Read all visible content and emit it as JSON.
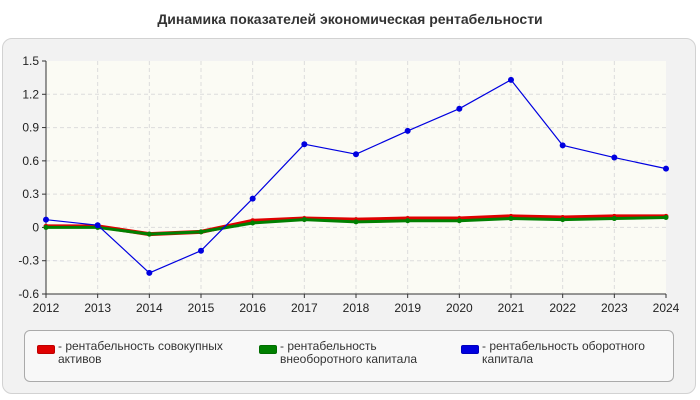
{
  "chart_data": {
    "type": "line",
    "title": "Динамика показателей экономическая рентабельности",
    "xlabel": "",
    "ylabel": "",
    "categories": [
      "2012",
      "2013",
      "2014",
      "2015",
      "2016",
      "2017",
      "2018",
      "2019",
      "2020",
      "2021",
      "2022",
      "2023",
      "2024"
    ],
    "ylim": [
      -0.6,
      1.5
    ],
    "yticks": [
      -0.6,
      -0.3,
      0,
      0.3,
      0.6,
      0.9,
      1.2,
      1.5
    ],
    "ytick_labels": [
      "-0.6",
      "-0.3",
      "0",
      "0.3",
      "0.6",
      "0.9",
      "1.2",
      "1.5"
    ],
    "grid": true,
    "legend_position": "bottom",
    "series": [
      {
        "name": "рентабельность совокупных активов",
        "legend_label": "- рентабельность совокупных активов",
        "color": "#e00000",
        "values": [
          0.01,
          0.01,
          -0.06,
          -0.04,
          0.06,
          0.08,
          0.07,
          0.08,
          0.08,
          0.1,
          0.09,
          0.1,
          0.1
        ]
      },
      {
        "name": "рентабельность внеоборотного капитала",
        "legend_label": "- рентабельность внеоборотного капитала",
        "color": "#008000",
        "values": [
          0.0,
          0.0,
          -0.06,
          -0.04,
          0.04,
          0.07,
          0.05,
          0.06,
          0.06,
          0.08,
          0.07,
          0.08,
          0.09
        ]
      },
      {
        "name": "рентабельность оборотного капитала",
        "legend_label": "- рентабельность оборотного капитала",
        "color": "#0000e0",
        "values": [
          0.07,
          0.02,
          -0.41,
          -0.21,
          0.26,
          0.75,
          0.66,
          0.87,
          1.07,
          1.33,
          0.74,
          0.63,
          0.53
        ]
      }
    ]
  }
}
